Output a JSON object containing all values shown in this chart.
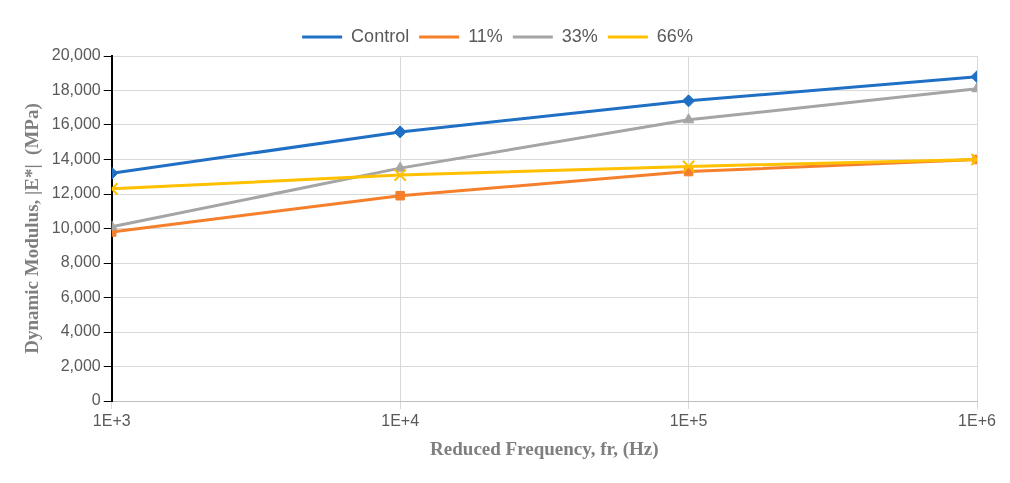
{
  "chart_data": {
    "type": "line",
    "xlabel": "Reduced Frequency, fr, (Hz)",
    "ylabel": "Dynamic Modulus, |E*|  (MPa)",
    "x": [
      1000,
      10000,
      100000,
      1000000
    ],
    "log": "x",
    "xlim": [
      1000,
      1000000
    ],
    "xticks": [
      {
        "value": 1000,
        "label": "1E+3"
      },
      {
        "value": 10000,
        "label": "1E+4"
      },
      {
        "value": 100000,
        "label": "1E+5"
      },
      {
        "value": 1000000,
        "label": "1E+6"
      }
    ],
    "ylim": [
      0,
      20000
    ],
    "yticks": [
      {
        "value": 0,
        "label": "0"
      },
      {
        "value": 2000,
        "label": "2,000"
      },
      {
        "value": 4000,
        "label": "4,000"
      },
      {
        "value": 6000,
        "label": "6,000"
      },
      {
        "value": 8000,
        "label": "8,000"
      },
      {
        "value": 10000,
        "label": "10,000"
      },
      {
        "value": 12000,
        "label": "12,000"
      },
      {
        "value": 14000,
        "label": "14,000"
      },
      {
        "value": 16000,
        "label": "16,000"
      },
      {
        "value": 18000,
        "label": "18,000"
      },
      {
        "value": 20000,
        "label": "20,000"
      }
    ],
    "grid": true,
    "legend": "top",
    "series": [
      {
        "name": "Control",
        "color": "#1f6fc5",
        "marker": "diamond",
        "values": [
          13200,
          15600,
          17400,
          18800
        ]
      },
      {
        "name": "11%",
        "color": "#f57f2a",
        "marker": "square",
        "values": [
          9800,
          11900,
          13300,
          14000
        ]
      },
      {
        "name": "33%",
        "color": "#a5a5a5",
        "marker": "triangle",
        "values": [
          10100,
          13500,
          16300,
          18100
        ]
      },
      {
        "name": "66%",
        "color": "#ffc000",
        "marker": "cross",
        "values": [
          12300,
          13100,
          13600,
          14000
        ]
      }
    ]
  }
}
